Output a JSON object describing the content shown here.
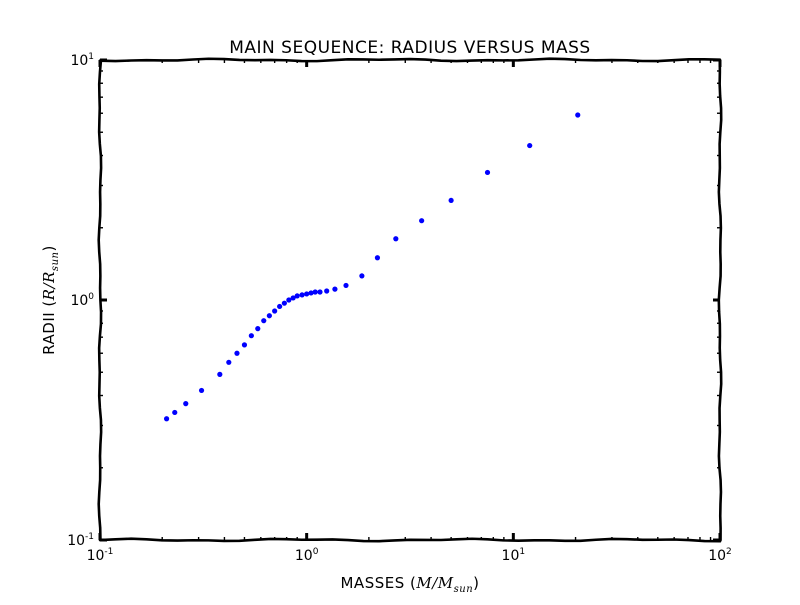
{
  "chart_data": {
    "type": "scatter",
    "title": "MAIN SEQUENCE: RADIUS VERSUS MASS",
    "xlabel_prefix": "MASSES (",
    "xlabel_math": "M/M",
    "xlabel_sub": "sun",
    "xlabel_suffix": ")",
    "ylabel_prefix": "RADII (",
    "ylabel_math": "R/R",
    "ylabel_sub": "sun",
    "ylabel_suffix": ")",
    "xscale": "log",
    "yscale": "log",
    "xlim": [
      0.1,
      100
    ],
    "ylim": [
      0.1,
      10
    ],
    "x_ticks": [
      {
        "base": "10",
        "exp": "-1"
      },
      {
        "base": "10",
        "exp": "0"
      },
      {
        "base": "10",
        "exp": "1"
      },
      {
        "base": "10",
        "exp": "2"
      }
    ],
    "y_ticks": [
      {
        "base": "10",
        "exp": "-1"
      },
      {
        "base": "10",
        "exp": "0"
      },
      {
        "base": "10",
        "exp": "1"
      }
    ],
    "marker_color": "#0000ff",
    "series": [
      {
        "x": [
          0.21,
          0.23,
          0.26,
          0.31,
          0.38,
          0.42,
          0.46,
          0.5,
          0.54,
          0.58,
          0.62,
          0.66,
          0.7,
          0.74,
          0.78,
          0.82,
          0.86,
          0.9,
          0.95,
          1.0,
          1.05,
          1.1,
          1.16,
          1.25,
          1.37,
          1.55,
          1.85,
          2.2,
          2.7,
          3.6,
          5.0,
          7.5,
          12.0,
          20.5
        ],
        "y": [
          0.32,
          0.34,
          0.37,
          0.42,
          0.49,
          0.55,
          0.6,
          0.65,
          0.71,
          0.76,
          0.82,
          0.86,
          0.9,
          0.94,
          0.97,
          1.0,
          1.02,
          1.04,
          1.05,
          1.06,
          1.07,
          1.08,
          1.08,
          1.09,
          1.11,
          1.15,
          1.26,
          1.5,
          1.8,
          2.14,
          2.6,
          3.4,
          4.4,
          5.9
        ]
      }
    ]
  }
}
